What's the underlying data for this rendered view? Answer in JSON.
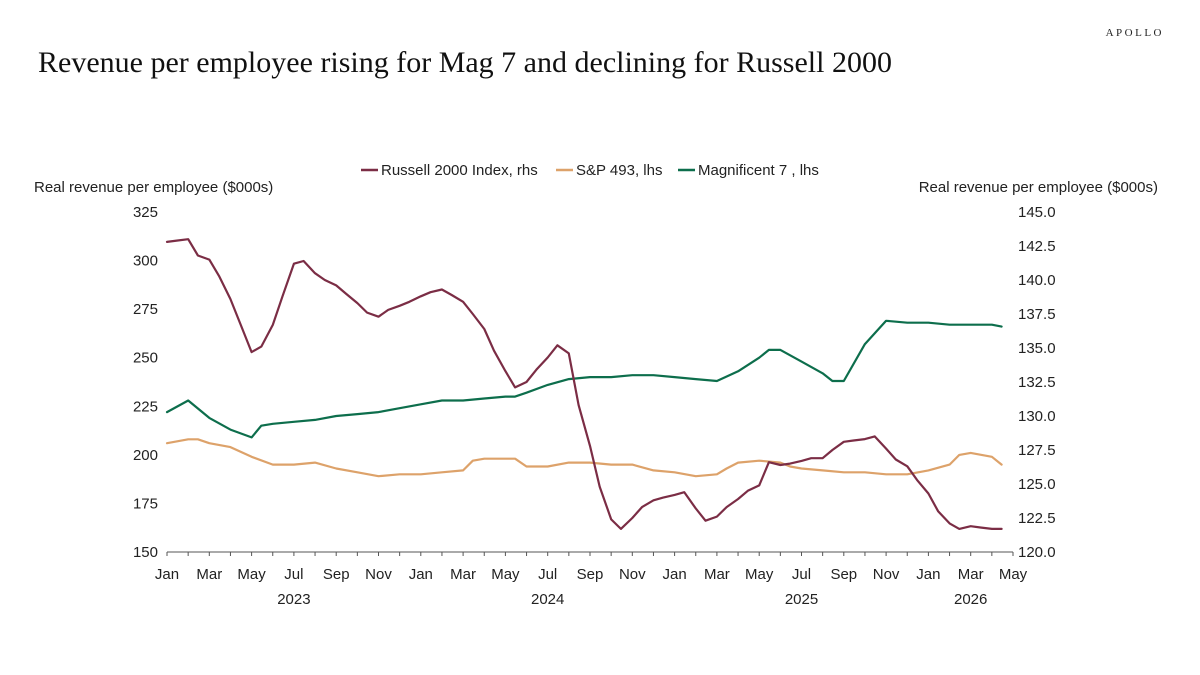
{
  "brand": "APOLLO",
  "title": "Revenue per employee rising for Mag 7 and declining for Russell 2000",
  "colors": {
    "russell": "#7b2d45",
    "sp493": "#dda26a",
    "mag7": "#0d6e4c",
    "axis": "#555555"
  },
  "chart_data": {
    "type": "line",
    "title": "Revenue per employee rising for Mag 7 and declining for Russell 2000",
    "ylabel_left": "Real revenue per employee ($000s)",
    "ylabel_right": "Real revenue per employee ($000s)",
    "ylim_left": [
      150,
      325
    ],
    "ylim_right": [
      120.0,
      145.0
    ],
    "yticks_left": [
      "325",
      "300",
      "275",
      "250",
      "225",
      "200",
      "175",
      "150"
    ],
    "yticks_right": [
      "145.0",
      "142.5",
      "140.0",
      "137.5",
      "135.0",
      "132.5",
      "130.0",
      "127.5",
      "125.0",
      "122.5",
      "120.0"
    ],
    "xlim": [
      "2023-01",
      "2026-05"
    ],
    "xticks": [
      "Jan",
      "Mar",
      "May",
      "Jul",
      "Sep",
      "Nov",
      "Jan",
      "Mar",
      "May",
      "Jul",
      "Sep",
      "Nov",
      "Jan",
      "Mar",
      "May",
      "Jul",
      "Sep",
      "Nov",
      "Jan",
      "Mar",
      "May"
    ],
    "xticks_months": [
      "2023-01",
      "2023-03",
      "2023-05",
      "2023-07",
      "2023-09",
      "2023-11",
      "2024-01",
      "2024-03",
      "2024-05",
      "2024-07",
      "2024-09",
      "2024-11",
      "2025-01",
      "2025-03",
      "2025-05",
      "2025-07",
      "2025-09",
      "2025-11",
      "2026-01",
      "2026-03",
      "2026-05"
    ],
    "year_labels": [
      {
        "label": "2023",
        "month": "2023-07"
      },
      {
        "label": "2024",
        "month": "2024-07"
      },
      {
        "label": "2025",
        "month": "2025-07"
      },
      {
        "label": "2026",
        "month": "2026-03"
      }
    ],
    "legend_position": "top-center",
    "grid": false,
    "series": [
      {
        "name": "Russell 2000 Index, rhs",
        "axis": "right",
        "color_key": "russell",
        "points": [
          [
            "2023-01-01",
            142.8
          ],
          [
            "2023-01-15",
            142.9
          ],
          [
            "2023-02-01",
            143.0
          ],
          [
            "2023-02-15",
            141.8
          ],
          [
            "2023-03-01",
            141.5
          ],
          [
            "2023-03-15",
            140.3
          ],
          [
            "2023-04-01",
            138.6
          ],
          [
            "2023-04-15",
            136.8
          ],
          [
            "2023-05-01",
            134.7
          ],
          [
            "2023-05-15",
            135.1
          ],
          [
            "2023-06-01",
            136.7
          ],
          [
            "2023-06-15",
            138.8
          ],
          [
            "2023-07-01",
            141.2
          ],
          [
            "2023-07-15",
            141.4
          ],
          [
            "2023-08-01",
            140.5
          ],
          [
            "2023-08-15",
            140.0
          ],
          [
            "2023-09-01",
            139.6
          ],
          [
            "2023-09-15",
            139.0
          ],
          [
            "2023-10-01",
            138.3
          ],
          [
            "2023-10-15",
            137.6
          ],
          [
            "2023-11-01",
            137.3
          ],
          [
            "2023-11-15",
            137.8
          ],
          [
            "2023-12-01",
            138.1
          ],
          [
            "2023-12-15",
            138.4
          ],
          [
            "2024-01-01",
            138.8
          ],
          [
            "2024-01-15",
            139.1
          ],
          [
            "2024-02-01",
            139.3
          ],
          [
            "2024-02-15",
            138.9
          ],
          [
            "2024-03-01",
            138.4
          ],
          [
            "2024-03-15",
            137.5
          ],
          [
            "2024-04-01",
            136.4
          ],
          [
            "2024-04-15",
            134.8
          ],
          [
            "2024-05-01",
            133.3
          ],
          [
            "2024-05-15",
            132.1
          ],
          [
            "2024-06-01",
            132.5
          ],
          [
            "2024-06-15",
            133.4
          ],
          [
            "2024-07-01",
            134.3
          ],
          [
            "2024-07-15",
            135.2
          ],
          [
            "2024-08-01",
            134.6
          ],
          [
            "2024-08-15",
            130.8
          ],
          [
            "2024-09-01",
            127.8
          ],
          [
            "2024-09-15",
            124.8
          ],
          [
            "2024-10-01",
            122.4
          ],
          [
            "2024-10-15",
            121.7
          ],
          [
            "2024-11-01",
            122.5
          ],
          [
            "2024-11-15",
            123.3
          ],
          [
            "2024-12-01",
            123.8
          ],
          [
            "2024-12-15",
            124.0
          ],
          [
            "2025-01-01",
            124.2
          ],
          [
            "2025-01-15",
            124.4
          ],
          [
            "2025-02-01",
            123.2
          ],
          [
            "2025-02-15",
            122.3
          ],
          [
            "2025-03-01",
            122.6
          ],
          [
            "2025-03-15",
            123.3
          ],
          [
            "2025-04-01",
            123.9
          ],
          [
            "2025-04-15",
            124.5
          ],
          [
            "2025-05-01",
            124.9
          ],
          [
            "2025-05-15",
            126.6
          ],
          [
            "2025-06-01",
            126.4
          ],
          [
            "2025-06-15",
            126.5
          ],
          [
            "2025-07-01",
            126.7
          ],
          [
            "2025-07-15",
            126.9
          ],
          [
            "2025-08-01",
            126.9
          ],
          [
            "2025-08-15",
            127.5
          ],
          [
            "2025-09-01",
            128.1
          ],
          [
            "2025-09-15",
            128.2
          ],
          [
            "2025-10-01",
            128.3
          ],
          [
            "2025-10-15",
            128.5
          ],
          [
            "2025-11-01",
            127.6
          ],
          [
            "2025-11-15",
            126.8
          ],
          [
            "2025-12-01",
            126.3
          ],
          [
            "2025-12-15",
            125.3
          ],
          [
            "2026-01-01",
            124.3
          ],
          [
            "2026-01-15",
            123.0
          ],
          [
            "2026-02-01",
            122.1
          ],
          [
            "2026-02-15",
            121.7
          ],
          [
            "2026-03-01",
            121.9
          ],
          [
            "2026-03-15",
            121.8
          ],
          [
            "2026-04-01",
            121.7
          ],
          [
            "2026-04-15",
            121.7
          ]
        ]
      },
      {
        "name": "S&P 493, lhs",
        "axis": "left",
        "color_key": "sp493",
        "points": [
          [
            "2023-01-01",
            206
          ],
          [
            "2023-02-01",
            208
          ],
          [
            "2023-02-15",
            208
          ],
          [
            "2023-03-01",
            206
          ],
          [
            "2023-04-01",
            204
          ],
          [
            "2023-05-01",
            199
          ],
          [
            "2023-06-01",
            195
          ],
          [
            "2023-07-01",
            195
          ],
          [
            "2023-08-01",
            196
          ],
          [
            "2023-09-01",
            193
          ],
          [
            "2023-10-01",
            191
          ],
          [
            "2023-11-01",
            189
          ],
          [
            "2023-12-01",
            190
          ],
          [
            "2024-01-01",
            190
          ],
          [
            "2024-02-01",
            191
          ],
          [
            "2024-03-01",
            192
          ],
          [
            "2024-03-15",
            197
          ],
          [
            "2024-04-01",
            198
          ],
          [
            "2024-05-01",
            198
          ],
          [
            "2024-05-15",
            198
          ],
          [
            "2024-06-01",
            194
          ],
          [
            "2024-07-01",
            194
          ],
          [
            "2024-08-01",
            196
          ],
          [
            "2024-09-01",
            196
          ],
          [
            "2024-10-01",
            195
          ],
          [
            "2024-11-01",
            195
          ],
          [
            "2024-12-01",
            192
          ],
          [
            "2025-01-01",
            191
          ],
          [
            "2025-02-01",
            189
          ],
          [
            "2025-03-01",
            190
          ],
          [
            "2025-03-15",
            193
          ],
          [
            "2025-04-01",
            196
          ],
          [
            "2025-05-01",
            197
          ],
          [
            "2025-06-01",
            196
          ],
          [
            "2025-06-15",
            194
          ],
          [
            "2025-07-01",
            193
          ],
          [
            "2025-08-01",
            192
          ],
          [
            "2025-09-01",
            191
          ],
          [
            "2025-10-01",
            191
          ],
          [
            "2025-11-01",
            190
          ],
          [
            "2025-12-01",
            190
          ],
          [
            "2026-01-01",
            192
          ],
          [
            "2026-02-01",
            195
          ],
          [
            "2026-02-15",
            200
          ],
          [
            "2026-03-01",
            201
          ],
          [
            "2026-04-01",
            199
          ],
          [
            "2026-04-15",
            195
          ]
        ]
      },
      {
        "name": "Magnificent 7 , lhs",
        "axis": "left",
        "color_key": "mag7",
        "points": [
          [
            "2023-01-01",
            222
          ],
          [
            "2023-02-01",
            228
          ],
          [
            "2023-03-01",
            219
          ],
          [
            "2023-04-01",
            213
          ],
          [
            "2023-05-01",
            209
          ],
          [
            "2023-05-15",
            215
          ],
          [
            "2023-06-01",
            216
          ],
          [
            "2023-07-01",
            217
          ],
          [
            "2023-08-01",
            218
          ],
          [
            "2023-09-01",
            220
          ],
          [
            "2023-10-01",
            221
          ],
          [
            "2023-11-01",
            222
          ],
          [
            "2023-12-01",
            224
          ],
          [
            "2024-01-01",
            226
          ],
          [
            "2024-02-01",
            228
          ],
          [
            "2024-03-01",
            228
          ],
          [
            "2024-04-01",
            229
          ],
          [
            "2024-05-01",
            230
          ],
          [
            "2024-05-15",
            230
          ],
          [
            "2024-06-01",
            232
          ],
          [
            "2024-07-01",
            236
          ],
          [
            "2024-08-01",
            239
          ],
          [
            "2024-09-01",
            240
          ],
          [
            "2024-10-01",
            240
          ],
          [
            "2024-11-01",
            241
          ],
          [
            "2024-12-01",
            241
          ],
          [
            "2025-01-01",
            240
          ],
          [
            "2025-02-01",
            239
          ],
          [
            "2025-03-01",
            238
          ],
          [
            "2025-04-01",
            243
          ],
          [
            "2025-05-01",
            250
          ],
          [
            "2025-05-15",
            254
          ],
          [
            "2025-06-01",
            254
          ],
          [
            "2025-07-01",
            248
          ],
          [
            "2025-08-01",
            242
          ],
          [
            "2025-08-15",
            238
          ],
          [
            "2025-09-01",
            238
          ],
          [
            "2025-10-01",
            257
          ],
          [
            "2025-11-01",
            269
          ],
          [
            "2025-12-01",
            268
          ],
          [
            "2026-01-01",
            268
          ],
          [
            "2026-02-01",
            267
          ],
          [
            "2026-03-01",
            267
          ],
          [
            "2026-04-01",
            267
          ],
          [
            "2026-04-15",
            266
          ]
        ]
      }
    ]
  }
}
